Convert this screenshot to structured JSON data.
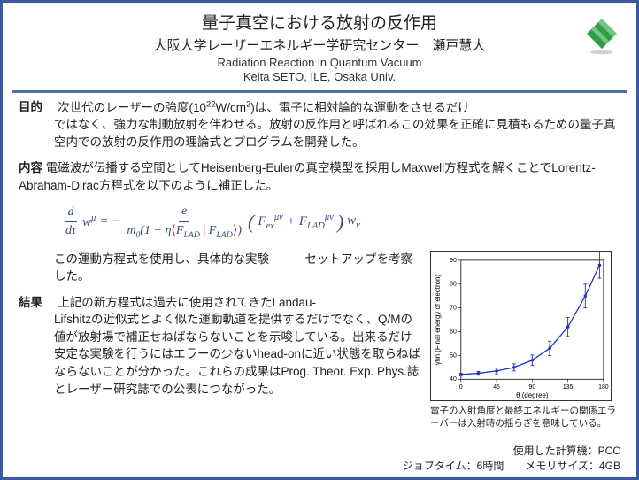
{
  "header": {
    "title_ja": "量子真空における放射の反作用",
    "subtitle_ja": "大阪大学レーザーエネルギー学研究センター　瀬戸慧大",
    "title_en": "Radiation Reaction in Quantum Vacuum",
    "subtitle_en": "Keita SETO, ILE, Osaka Univ.",
    "logo_color": "#2ea043"
  },
  "style": {
    "border_color": "#3e5a9e",
    "divider_color": "#4a6eb0",
    "eq_color": "#3a4a7a",
    "bracket_color": "#c03030"
  },
  "sections": {
    "purpose_label": "目的",
    "purpose_text": "次世代のレーザーの強度(10²²W/cm²)は、電子に相対論的な運動をさせるだけではなく、強力な制動放射を伴わせる。放射の反作用と呼ばれるこの効果を正確に見積もるための量子真空内での放射の反作用の理論式とプログラムを開発した。",
    "content_label": "内容",
    "content_text": "電磁波が伝播する空間としてHeisenberg-Eulerの真空模型を採用しMaxwell方程式を解くことでLorentz-Abraham-Dirac方程式を以下のように補正した。",
    "content_after_eq": "この運動方程式を使用し、具体的な実験　　　セットアップを考察した。",
    "result_label": "結果",
    "result_text": "上記の新方程式は過去に使用されてきたLandau-Lifshitzの近似式とよく似た運動軌道を提供するだけでなく、Q/Mの値が放射場で補正せねばならないことを示唆している。出来るだけ安定な実験を行うにはエラーの少ないhead-onに近い状態を取らねばならないことが分かった。これらの成果はProg. Theor. Exp. Phys.誌とレーザー研究誌での公表につながった。"
  },
  "equation": {
    "lhs_num": "d",
    "lhs_den": "dτ",
    "lhs_var": "w",
    "lhs_sup": "μ",
    "eq": " = − ",
    "rhs_num": "e",
    "rhs_den_m0": "m",
    "rhs_den_0": "0",
    "rhs_den_paren_l": "(1 − η",
    "rhs_den_bra": "⟨",
    "rhs_den_F1": "F",
    "rhs_den_sub": "LAD",
    "rhs_den_mid": " | ",
    "rhs_den_ket": "⟩",
    "rhs_den_paren_r": ")",
    "paren_l": "(",
    "F_ex": "F",
    "ex_sub": "ex",
    "munu": "μν",
    "plus": " + ",
    "F_lad": "F",
    "lad_sub": "LAD",
    "paren_r": ")",
    "w": "w",
    "nu": "ν"
  },
  "chart": {
    "type": "line-scatter",
    "xlabel": "θ (degree)",
    "ylabel": "γfin (Final energy of electron)",
    "xlim": [
      0,
      180
    ],
    "ylim": [
      40,
      90
    ],
    "xticks": [
      0,
      45,
      90,
      135,
      180
    ],
    "yticks": [
      40,
      50,
      60,
      70,
      80,
      90
    ],
    "line_color": "#2030c0",
    "marker_color": "#2030c0",
    "background_color": "#ffffff",
    "tick_fontsize": 7,
    "label_fontsize": 8,
    "points": [
      {
        "x": 0,
        "y": 42,
        "err": 0.5
      },
      {
        "x": 22,
        "y": 42.5,
        "err": 0.8
      },
      {
        "x": 45,
        "y": 43.5,
        "err": 1.2
      },
      {
        "x": 67,
        "y": 45,
        "err": 1.5
      },
      {
        "x": 90,
        "y": 48,
        "err": 2.2
      },
      {
        "x": 112,
        "y": 53,
        "err": 3.0
      },
      {
        "x": 135,
        "y": 62,
        "err": 4.0
      },
      {
        "x": 157,
        "y": 75,
        "err": 5.0
      },
      {
        "x": 175,
        "y": 88,
        "err": 5.5
      }
    ],
    "caption": "電子の入射角度と最終エネルギーの関係エラーバーは入射時の揺らぎを意味している。"
  },
  "footer": {
    "computer_label": "使用した計算機：",
    "computer_value": "PCC",
    "jobtime_label": "ジョブタイム：",
    "jobtime_value": "6時間",
    "memory_label": "メモリサイズ：",
    "memory_value": "4GB"
  }
}
